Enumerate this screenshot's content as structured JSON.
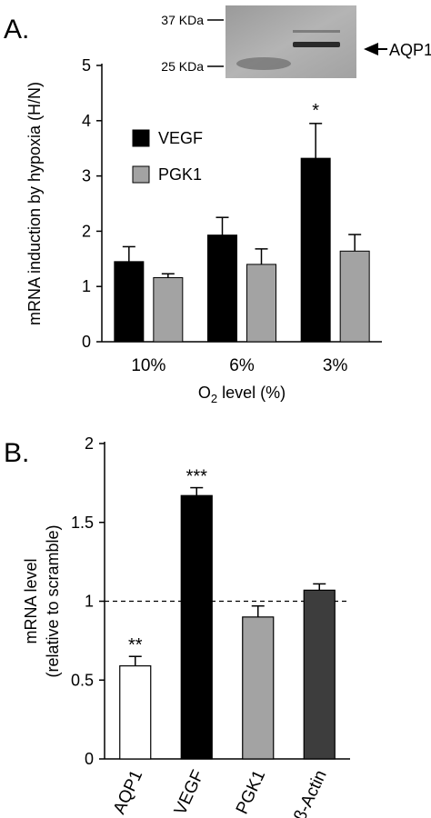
{
  "panels": {
    "a_letter": "A.",
    "b_letter": "B."
  },
  "blot": {
    "marker_top": "37 KDa",
    "marker_bottom": "25 KDa",
    "band_label": "AQP1"
  },
  "chart_data": [
    {
      "type": "bar",
      "panel": "A.",
      "title": "",
      "categories": [
        "10%",
        "6%",
        "3%"
      ],
      "xlabel_main": "O",
      "xlabel_sub": "2",
      "xlabel_tail": " level (%)",
      "ylabel": "mRNA induction by hypoxia (H/N)",
      "ylim": [
        0,
        5
      ],
      "yticks": [
        0,
        1,
        2,
        3,
        4,
        5
      ],
      "legend_position": "upper-left",
      "series": [
        {
          "name": "VEGF",
          "color": "#000000",
          "values": [
            1.45,
            1.93,
            3.32
          ],
          "errors": [
            0.27,
            0.32,
            0.63
          ]
        },
        {
          "name": "PGK1",
          "color": "#a3a3a3",
          "values": [
            1.16,
            1.4,
            1.64
          ],
          "errors": [
            0.07,
            0.28,
            0.3
          ]
        }
      ],
      "annotations": [
        {
          "category": "3%",
          "series": "VEGF",
          "text": "*"
        }
      ]
    },
    {
      "type": "bar",
      "panel": "B.",
      "title": "",
      "categories": [
        "AQP1",
        "VEGF",
        "PGK1",
        "β-Actin"
      ],
      "ylabel_line1": "mRNA level",
      "ylabel_line2": "(relative to scramble)",
      "ylim": [
        0,
        2
      ],
      "yticks": [
        "0",
        "0.5",
        "1",
        "1.5",
        "2"
      ],
      "reference_line": 1,
      "bars": [
        {
          "label": "AQP1",
          "value": 0.59,
          "error": 0.06,
          "color": "#ffffff",
          "annotation": "**"
        },
        {
          "label": "VEGF",
          "value": 1.67,
          "error": 0.05,
          "color": "#000000",
          "annotation": "***"
        },
        {
          "label": "PGK1",
          "value": 0.9,
          "error": 0.07,
          "color": "#a3a3a3",
          "annotation": ""
        },
        {
          "label": "β-Actin",
          "value": 1.07,
          "error": 0.04,
          "color": "#3d3d3d",
          "annotation": ""
        }
      ]
    }
  ]
}
